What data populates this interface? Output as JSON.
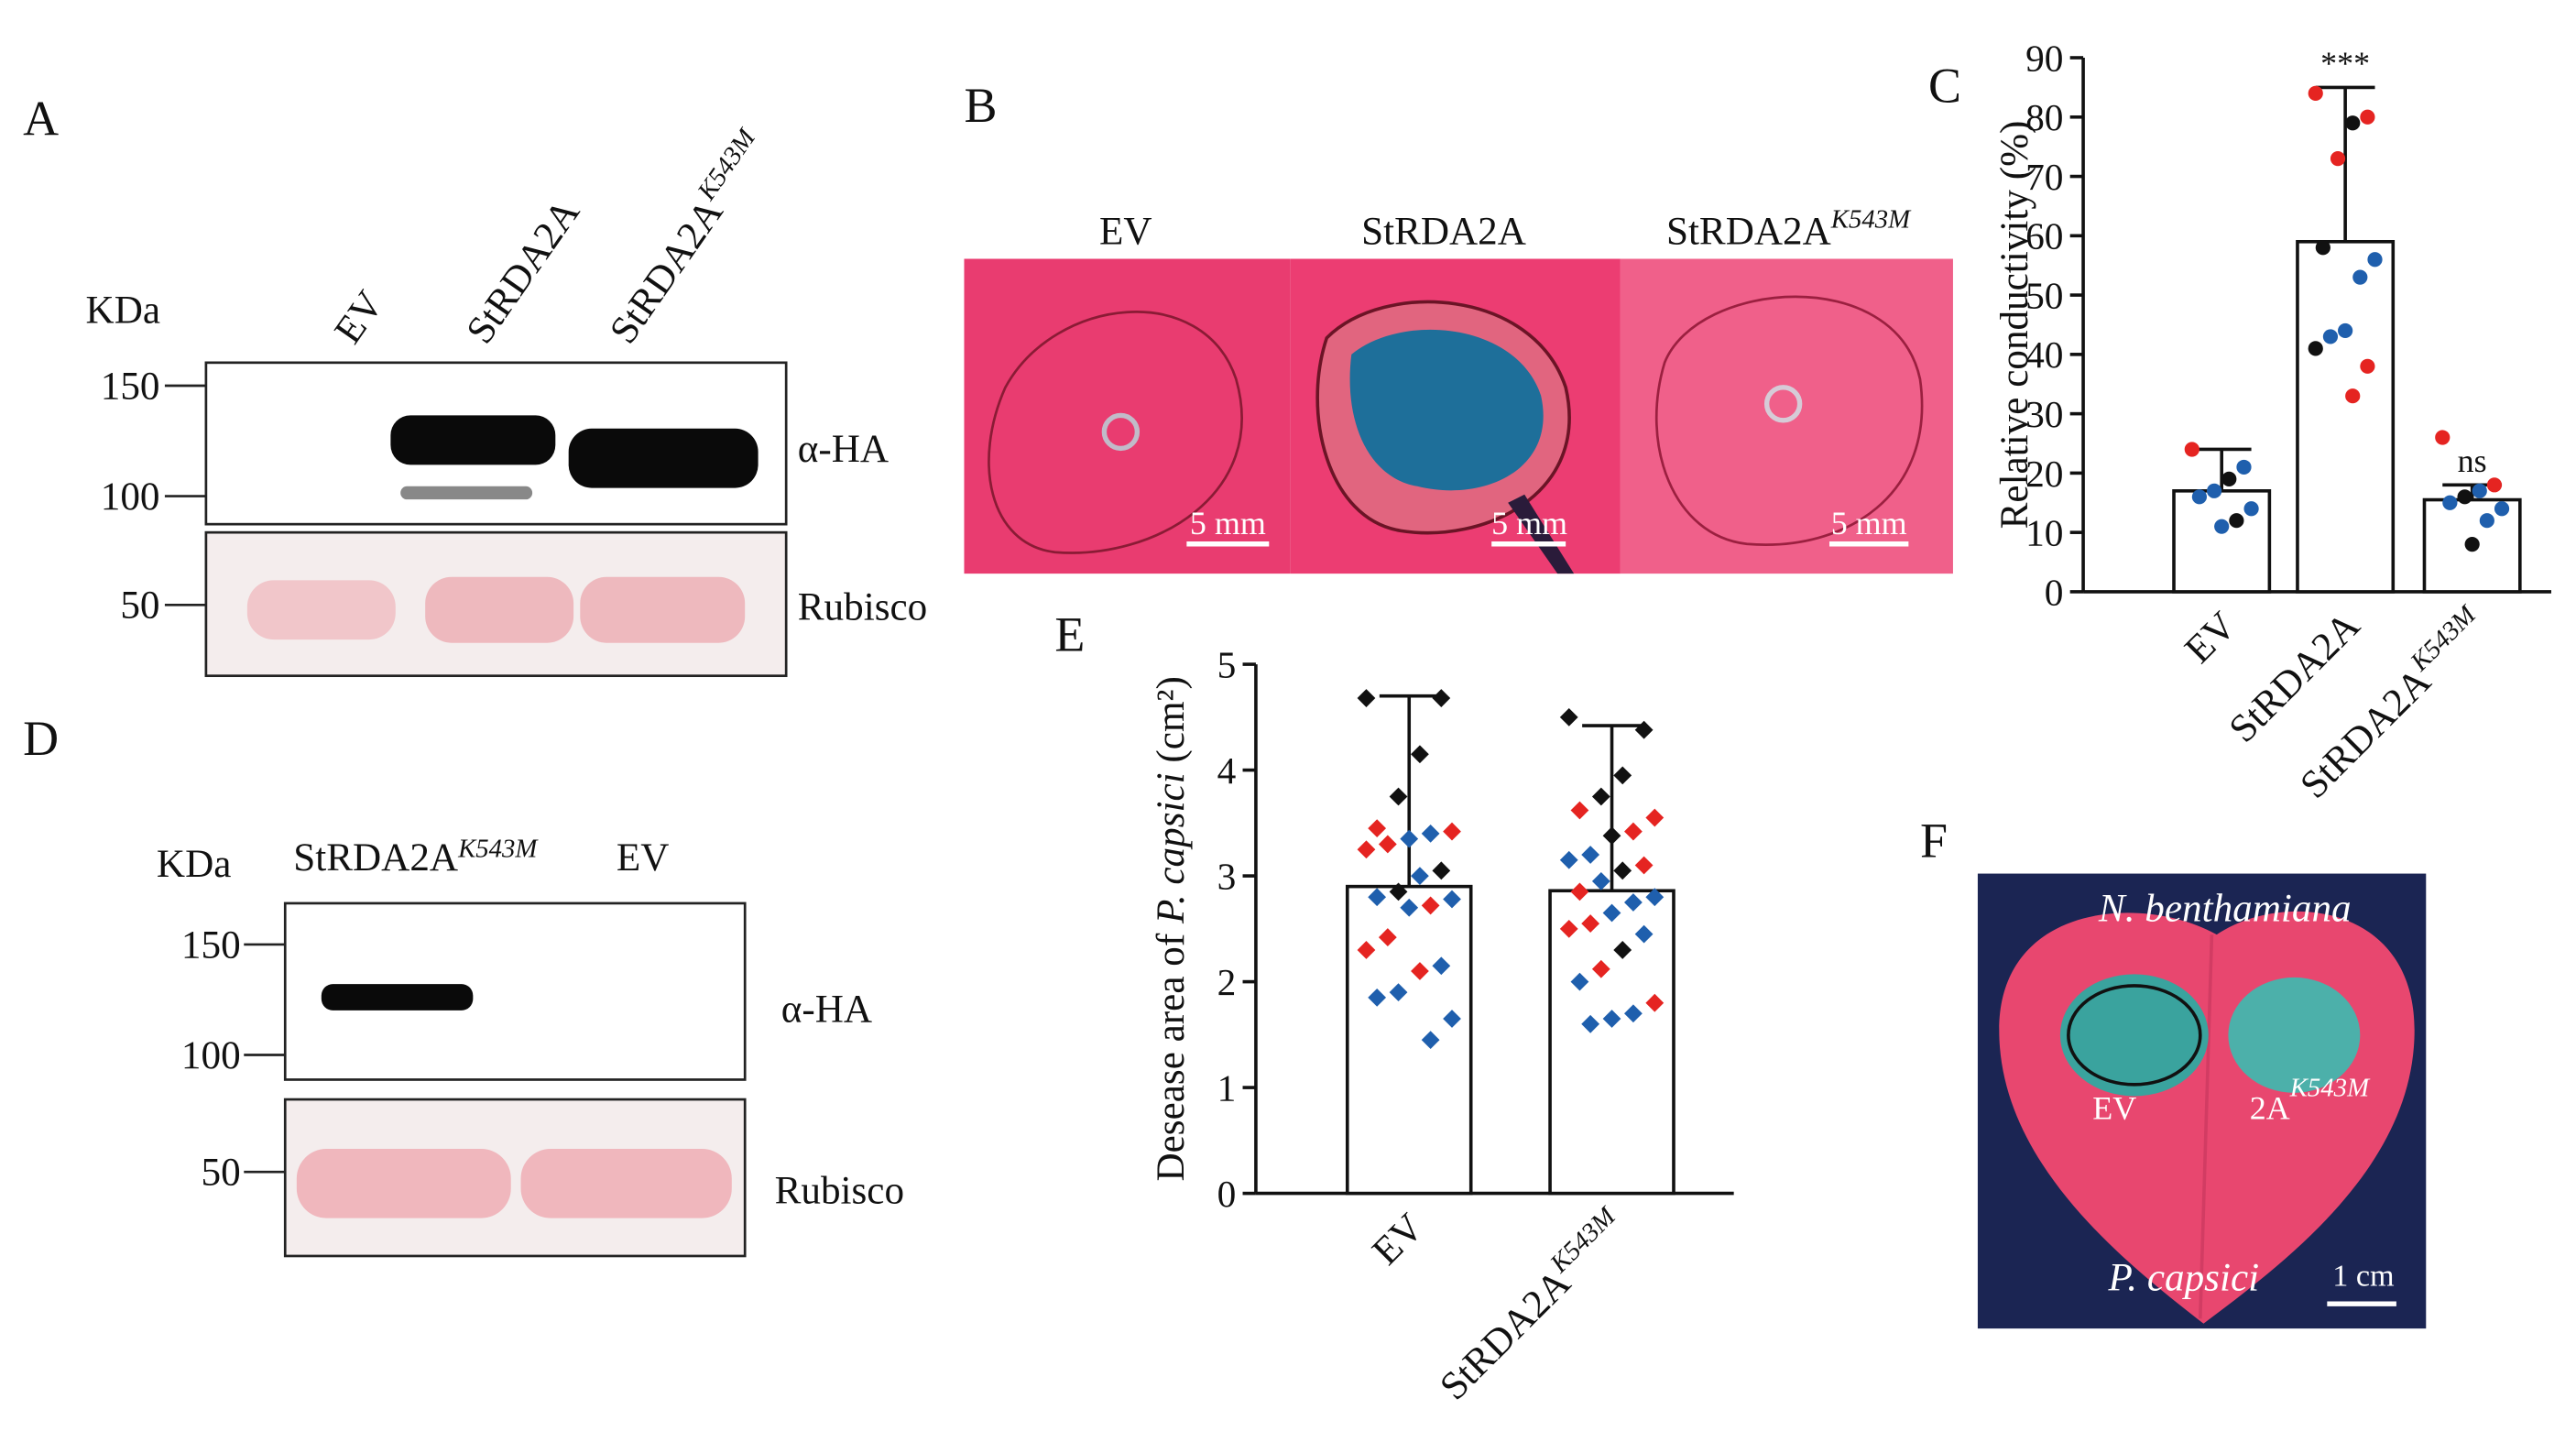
{
  "panels": {
    "A": {
      "label": "A",
      "kda": "KDa",
      "lanes": [
        {
          "text": "EV"
        },
        {
          "text": "StRDA2A"
        },
        {
          "text": "StRDA2A",
          "sup": "K543M"
        }
      ],
      "markers": [
        "150",
        "100",
        "50"
      ],
      "antibody": "α-HA",
      "loading": "Rubisco"
    },
    "B": {
      "label": "B",
      "titles": [
        {
          "text": "EV"
        },
        {
          "text": "StRDA2A"
        },
        {
          "text": "StRDA2A",
          "sup": "K543M"
        }
      ],
      "scale_bars": [
        "5 mm",
        "5 mm",
        "5 mm"
      ]
    },
    "D": {
      "label": "D",
      "kda": "KDa",
      "lanes": [
        {
          "text": "StRDA2A",
          "sup": "K543M"
        },
        {
          "text": "EV"
        }
      ],
      "markers": [
        "150",
        "100",
        "50"
      ],
      "antibody": "α-HA",
      "loading": "Rubisco"
    },
    "F": {
      "label": "F",
      "host": "N. benthamiana",
      "left_spot": "EV",
      "right_spot": {
        "text": "2A",
        "sup": "K543M"
      },
      "pathogen": "P. capsici",
      "scale_bar": "1 cm"
    }
  },
  "chart_data": [
    {
      "type": "bar",
      "panel_label": "C",
      "ylabel": "Relative conductivity (%)",
      "categories": [
        {
          "text": "EV"
        },
        {
          "text": "StRDA2A"
        },
        {
          "text": "StRDA2A",
          "sup": "K543M"
        }
      ],
      "values": [
        17,
        59,
        15.5
      ],
      "error_top": [
        24,
        85,
        18
      ],
      "annotations": [
        {
          "category": 1,
          "text": "***"
        },
        {
          "category": 2,
          "text": "ns"
        }
      ],
      "marker": "circle",
      "points": [
        {
          "values": [
            24,
            21,
            19,
            17,
            16,
            14,
            12,
            11
          ],
          "colors": [
            "#e52421",
            "#1f5fad",
            "#111111",
            "#1f5fad",
            "#1f5fad",
            "#1f5fad",
            "#111111",
            "#1f5fad"
          ]
        },
        {
          "values": [
            84,
            80,
            79,
            73,
            58,
            56,
            53,
            44,
            43,
            41,
            38,
            33
          ],
          "colors": [
            "#e52421",
            "#e52421",
            "#111111",
            "#e52421",
            "#111111",
            "#1f5fad",
            "#1f5fad",
            "#1f5fad",
            "#1f5fad",
            "#111111",
            "#e52421",
            "#e52421"
          ]
        },
        {
          "values": [
            26,
            18,
            17,
            16,
            15,
            14,
            12,
            8
          ],
          "colors": [
            "#e52421",
            "#e52421",
            "#1f5fad",
            "#111111",
            "#1f5fad",
            "#1f5fad",
            "#1f5fad",
            "#111111"
          ]
        }
      ],
      "ylim": [
        0,
        90
      ],
      "yticks": [
        0,
        10,
        20,
        30,
        40,
        50,
        60,
        70,
        80,
        90
      ]
    },
    {
      "type": "bar",
      "panel_label": "E",
      "ylabel": {
        "pre": "Desease area of",
        "italic": "P. capsici",
        "post": "(cm²)"
      },
      "categories": [
        {
          "text": "EV"
        },
        {
          "text": "StRDA2A",
          "sup": "K543M"
        }
      ],
      "values": [
        2.9,
        2.86
      ],
      "error_top": [
        4.7,
        4.42
      ],
      "annotations": [],
      "marker": "diamond",
      "points": [
        {
          "values": [
            4.68,
            4.68,
            4.15,
            3.75,
            3.45,
            3.42,
            3.4,
            3.35,
            3.3,
            3.25,
            3.05,
            3.0,
            2.85,
            2.8,
            2.78,
            2.72,
            2.7,
            2.42,
            2.3,
            2.15,
            2.1,
            1.9,
            1.85,
            1.65,
            1.45
          ],
          "colors": [
            "#111111",
            "#111111",
            "#111111",
            "#111111",
            "#e52421",
            "#e52421",
            "#1f5fad",
            "#1f5fad",
            "#e52421",
            "#e52421",
            "#111111",
            "#1f5fad",
            "#111111",
            "#1f5fad",
            "#1f5fad",
            "#e52421",
            "#1f5fad",
            "#e52421",
            "#e52421",
            "#1f5fad",
            "#e52421",
            "#1f5fad",
            "#1f5fad",
            "#1f5fad",
            "#1f5fad"
          ]
        },
        {
          "values": [
            4.5,
            4.38,
            3.95,
            3.75,
            3.62,
            3.55,
            3.42,
            3.38,
            3.2,
            3.15,
            3.1,
            3.05,
            2.95,
            2.85,
            2.8,
            2.75,
            2.65,
            2.55,
            2.5,
            2.45,
            2.3,
            2.12,
            2.0,
            1.8,
            1.7,
            1.65,
            1.6
          ],
          "colors": [
            "#111111",
            "#111111",
            "#111111",
            "#111111",
            "#e52421",
            "#e52421",
            "#e52421",
            "#111111",
            "#1f5fad",
            "#1f5fad",
            "#e52421",
            "#111111",
            "#1f5fad",
            "#e52421",
            "#1f5fad",
            "#1f5fad",
            "#1f5fad",
            "#e52421",
            "#e52421",
            "#1f5fad",
            "#111111",
            "#e52421",
            "#1f5fad",
            "#e52421",
            "#1f5fad",
            "#1f5fad",
            "#1f5fad"
          ]
        }
      ],
      "ylim": [
        0,
        5
      ],
      "yticks": [
        0,
        1,
        2,
        3,
        4,
        5
      ]
    }
  ]
}
